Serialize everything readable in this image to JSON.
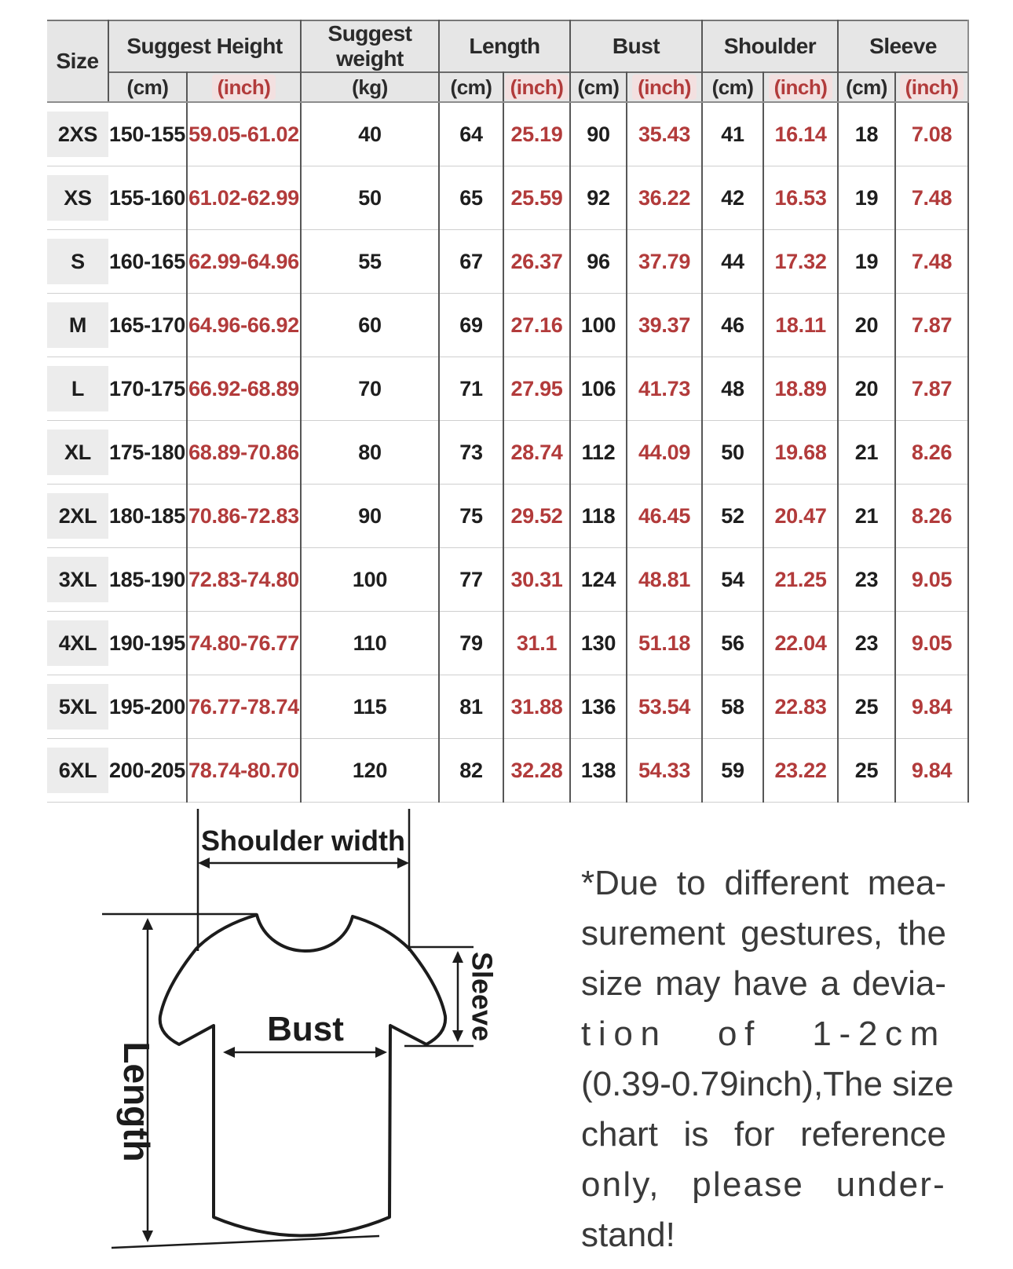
{
  "table": {
    "header": {
      "size": "Size",
      "groups": [
        {
          "label": "Suggest Height",
          "units": [
            "(cm)",
            "(inch)"
          ]
        },
        {
          "label": "Suggest weight",
          "units": [
            "(kg)"
          ]
        },
        {
          "label": "Length",
          "units": [
            "(cm)",
            "(inch)"
          ]
        },
        {
          "label": "Bust",
          "units": [
            "(cm)",
            "(inch)"
          ]
        },
        {
          "label": "Shoulder",
          "units": [
            "(cm)",
            "(inch)"
          ]
        },
        {
          "label": "Sleeve",
          "units": [
            "(cm)",
            "(inch)"
          ]
        }
      ]
    },
    "red_columns": [
      2,
      5,
      7,
      9,
      11
    ],
    "rows": [
      [
        "2XS",
        "150-155",
        "59.05-61.02",
        "40",
        "64",
        "25.19",
        "90",
        "35.43",
        "41",
        "16.14",
        "18",
        "7.08"
      ],
      [
        "XS",
        "155-160",
        "61.02-62.99",
        "50",
        "65",
        "25.59",
        "92",
        "36.22",
        "42",
        "16.53",
        "19",
        "7.48"
      ],
      [
        "S",
        "160-165",
        "62.99-64.96",
        "55",
        "67",
        "26.37",
        "96",
        "37.79",
        "44",
        "17.32",
        "19",
        "7.48"
      ],
      [
        "M",
        "165-170",
        "64.96-66.92",
        "60",
        "69",
        "27.16",
        "100",
        "39.37",
        "46",
        "18.11",
        "20",
        "7.87"
      ],
      [
        "L",
        "170-175",
        "66.92-68.89",
        "70",
        "71",
        "27.95",
        "106",
        "41.73",
        "48",
        "18.89",
        "20",
        "7.87"
      ],
      [
        "XL",
        "175-180",
        "68.89-70.86",
        "80",
        "73",
        "28.74",
        "112",
        "44.09",
        "50",
        "19.68",
        "21",
        "8.26"
      ],
      [
        "2XL",
        "180-185",
        "70.86-72.83",
        "90",
        "75",
        "29.52",
        "118",
        "46.45",
        "52",
        "20.47",
        "21",
        "8.26"
      ],
      [
        "3XL",
        "185-190",
        "72.83-74.80",
        "100",
        "77",
        "30.31",
        "124",
        "48.81",
        "54",
        "21.25",
        "23",
        "9.05"
      ],
      [
        "4XL",
        "190-195",
        "74.80-76.77",
        "110",
        "79",
        "31.1",
        "130",
        "51.18",
        "56",
        "22.04",
        "23",
        "9.05"
      ],
      [
        "5XL",
        "195-200",
        "76.77-78.74",
        "115",
        "81",
        "31.88",
        "136",
        "53.54",
        "58",
        "22.83",
        "25",
        "9.84"
      ],
      [
        "6XL",
        "200-205",
        "78.74-80.70",
        "120",
        "82",
        "32.28",
        "138",
        "54.33",
        "59",
        "23.22",
        "25",
        "9.84"
      ]
    ]
  },
  "diagram": {
    "labels": {
      "shoulder_width": "Shoulder width",
      "sleeve": "Sleeve",
      "bust": "Bust",
      "length": "Length"
    }
  },
  "note": {
    "lines": [
      "*Due to different mea-",
      "surement gestures, the",
      "size may have a devia-",
      "tion of 1-2cm",
      "(0.39-0.79inch),The size",
      "chart is for reference",
      "only, please under-",
      "stand!"
    ]
  },
  "colors": {
    "accent_red": "#b23b3b",
    "header_bg": "#e6e6e6",
    "chip_bg": "#ececec"
  }
}
